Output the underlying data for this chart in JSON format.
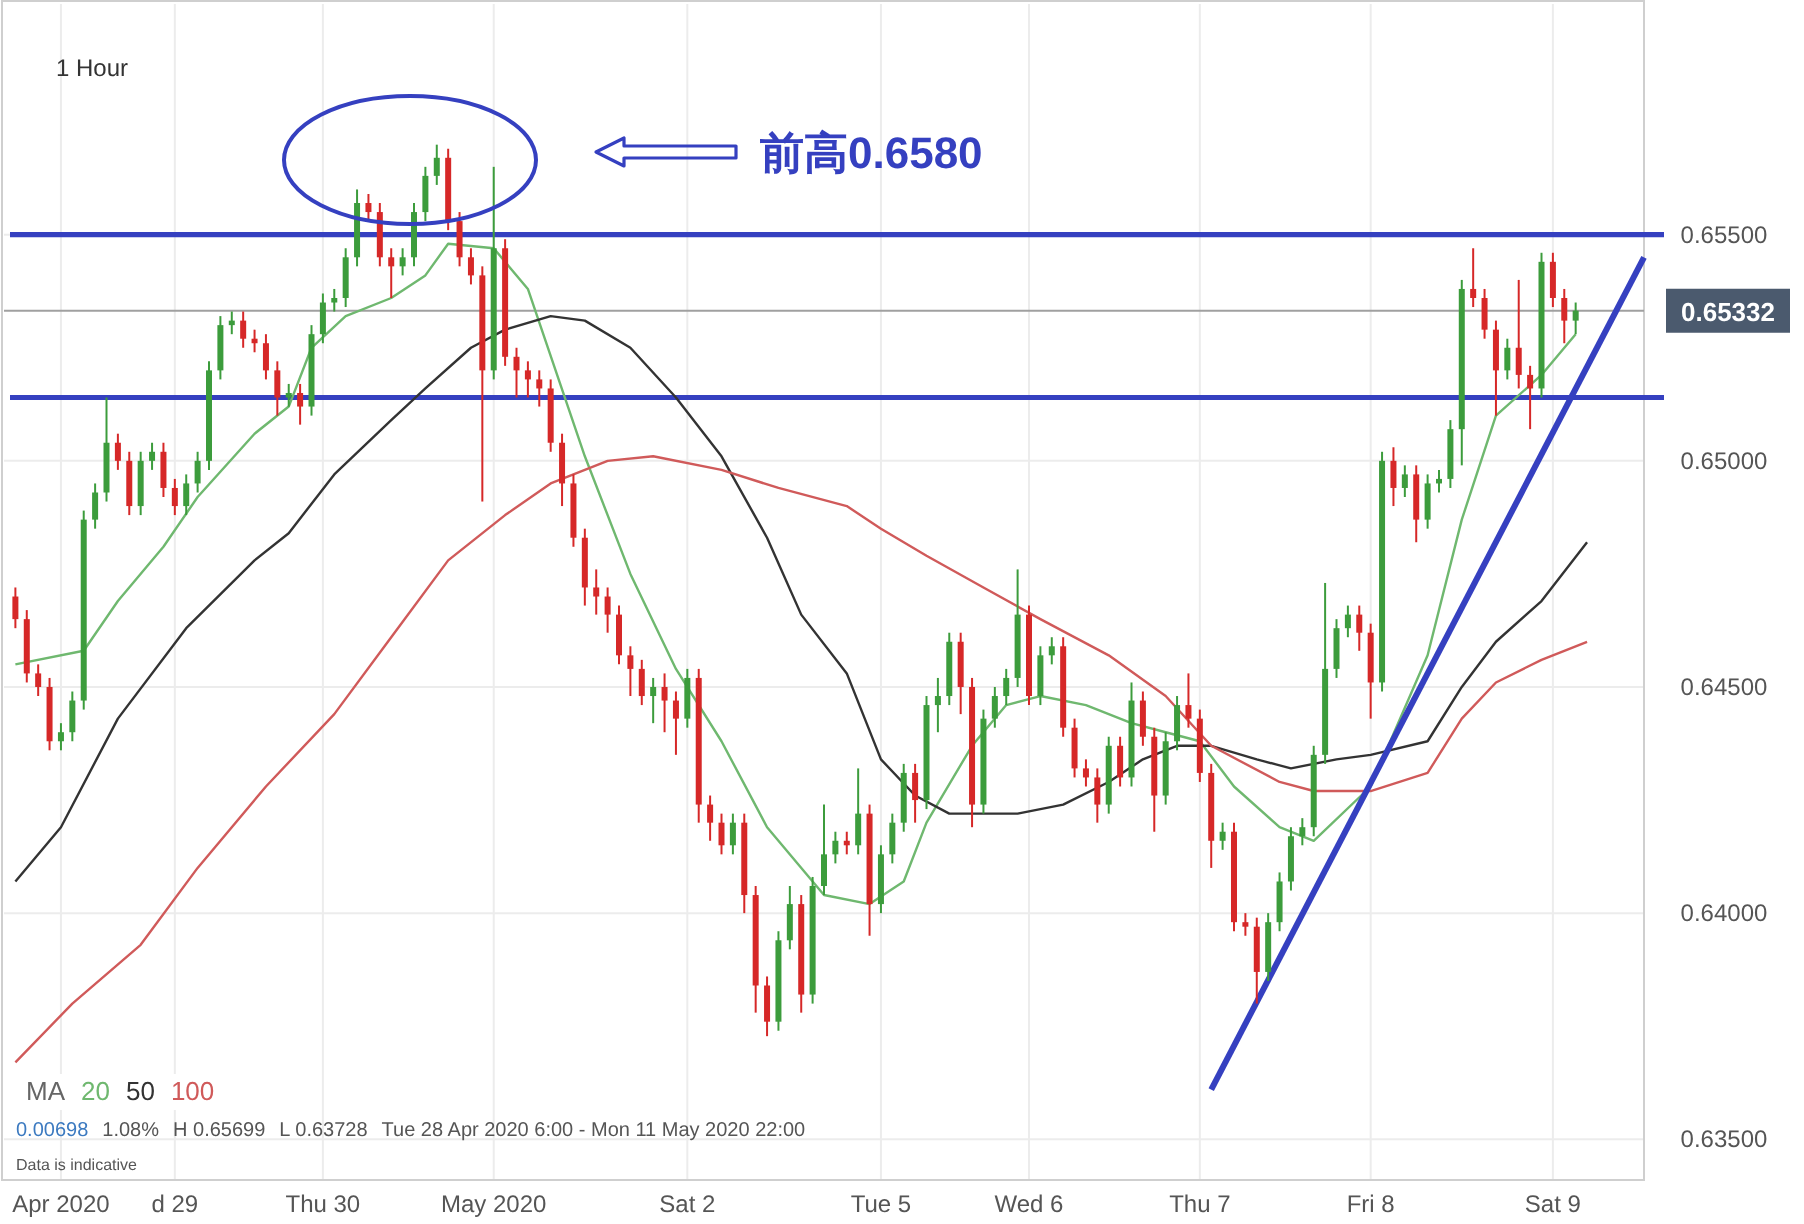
{
  "chart_data": {
    "type": "candlestick",
    "title": "1 Hour",
    "legend_title": "MA",
    "legend": "bottom left",
    "grid": true,
    "marker": "none",
    "line_style": "solid",
    "ylim": [
      0.6341,
      0.6601
    ],
    "yticks": [
      {
        "value": 0.635,
        "label": "0.63500"
      },
      {
        "value": 0.64,
        "label": "0.64000"
      },
      {
        "value": 0.645,
        "label": "0.64500"
      },
      {
        "value": 0.65,
        "label": "0.65000"
      },
      {
        "value": 0.655,
        "label": "0.65500"
      }
    ],
    "categories": [
      null,
      null,
      null,
      null,
      "Apr 2020",
      null,
      null,
      null,
      null,
      null,
      null,
      null,
      null,
      null,
      "d 29",
      null,
      null,
      null,
      null,
      null,
      null,
      null,
      null,
      null,
      null,
      null,
      null,
      "Thu 30",
      null,
      null,
      null,
      null,
      null,
      null,
      null,
      null,
      null,
      null,
      null,
      null,
      null,
      null,
      "May 2020",
      null,
      null,
      null,
      null,
      null,
      null,
      null,
      null,
      null,
      null,
      null,
      null,
      null,
      null,
      null,
      null,
      "Sat 2",
      null,
      null,
      null,
      null,
      null,
      null,
      null,
      null,
      null,
      null,
      null,
      null,
      null,
      null,
      null,
      null,
      "Tue 5",
      null,
      null,
      null,
      null,
      null,
      null,
      null,
      null,
      null,
      null,
      null,
      null,
      "Wed 6",
      null,
      null,
      null,
      null,
      null,
      null,
      null,
      null,
      null,
      null,
      null,
      null,
      null,
      null,
      "Thu 7",
      null,
      null,
      null,
      null,
      null,
      null,
      null,
      null,
      null,
      null,
      null,
      null,
      null,
      null,
      "Fri 8",
      null,
      null,
      null,
      null,
      null,
      null,
      null,
      null,
      null,
      null,
      null,
      null,
      null,
      null,
      null,
      "Sat 9",
      null,
      null,
      null,
      null,
      null,
      null,
      null,
      null
    ],
    "ohlc": [
      [
        0.647,
        0.6472,
        0.6463,
        0.6465
      ],
      [
        0.6465,
        0.6467,
        0.6451,
        0.6453
      ],
      [
        0.6453,
        0.6455,
        0.6448,
        0.645
      ],
      [
        0.645,
        0.6452,
        0.6436,
        0.6438
      ],
      [
        0.6438,
        0.6442,
        0.6436,
        0.644
      ],
      [
        0.644,
        0.6449,
        0.6438,
        0.6447
      ],
      [
        0.6447,
        0.6489,
        0.6445,
        0.6487
      ],
      [
        0.6487,
        0.6495,
        0.6485,
        0.6493
      ],
      [
        0.6493,
        0.6514,
        0.6491,
        0.6504
      ],
      [
        0.6504,
        0.6506,
        0.6498,
        0.65
      ],
      [
        0.65,
        0.6502,
        0.6488,
        0.649
      ],
      [
        0.649,
        0.6502,
        0.6488,
        0.65
      ],
      [
        0.65,
        0.6504,
        0.6498,
        0.6502
      ],
      [
        0.6502,
        0.6504,
        0.6492,
        0.6494
      ],
      [
        0.6494,
        0.6496,
        0.6488,
        0.649
      ],
      [
        0.649,
        0.6497,
        0.6488,
        0.6495
      ],
      [
        0.6495,
        0.6502,
        0.6493,
        0.65
      ],
      [
        0.65,
        0.6522,
        0.6498,
        0.652
      ],
      [
        0.652,
        0.6532,
        0.6518,
        0.653
      ],
      [
        0.653,
        0.6533,
        0.6528,
        0.6531
      ],
      [
        0.6531,
        0.6533,
        0.6525,
        0.6527
      ],
      [
        0.6527,
        0.6529,
        0.6524,
        0.6526
      ],
      [
        0.6526,
        0.6528,
        0.6518,
        0.652
      ],
      [
        0.652,
        0.6522,
        0.651,
        0.6514
      ],
      [
        0.6514,
        0.6517,
        0.6512,
        0.6515
      ],
      [
        0.6515,
        0.6517,
        0.6508,
        0.6512
      ],
      [
        0.6512,
        0.653,
        0.651,
        0.6528
      ],
      [
        0.6528,
        0.6537,
        0.6526,
        0.6535
      ],
      [
        0.6535,
        0.6538,
        0.6533,
        0.6536
      ],
      [
        0.6536,
        0.6547,
        0.6534,
        0.6545
      ],
      [
        0.6545,
        0.656,
        0.6543,
        0.6557
      ],
      [
        0.6557,
        0.6559,
        0.6553,
        0.6555
      ],
      [
        0.6555,
        0.6557,
        0.6543,
        0.6545
      ],
      [
        0.6545,
        0.6547,
        0.6536,
        0.6543
      ],
      [
        0.6543,
        0.6547,
        0.6541,
        0.6545
      ],
      [
        0.6545,
        0.6557,
        0.6543,
        0.6555
      ],
      [
        0.6555,
        0.6565,
        0.6553,
        0.6563
      ],
      [
        0.6563,
        0.65699,
        0.6561,
        0.6567
      ],
      [
        0.6567,
        0.6569,
        0.6551,
        0.6553
      ],
      [
        0.6553,
        0.6555,
        0.6543,
        0.6545
      ],
      [
        0.6545,
        0.6547,
        0.6539,
        0.6541
      ],
      [
        0.6541,
        0.6543,
        0.6491,
        0.652
      ],
      [
        0.652,
        0.6565,
        0.6518,
        0.6547
      ],
      [
        0.6547,
        0.6549,
        0.6521,
        0.6523
      ],
      [
        0.6523,
        0.6525,
        0.6514,
        0.652
      ],
      [
        0.652,
        0.6522,
        0.6514,
        0.6518
      ],
      [
        0.6518,
        0.652,
        0.6512,
        0.6516
      ],
      [
        0.6516,
        0.6518,
        0.6502,
        0.6504
      ],
      [
        0.6504,
        0.6506,
        0.649,
        0.6495
      ],
      [
        0.6495,
        0.6497,
        0.6481,
        0.6483
      ],
      [
        0.6483,
        0.6485,
        0.6468,
        0.6472
      ],
      [
        0.6472,
        0.6476,
        0.6466,
        0.647
      ],
      [
        0.647,
        0.6472,
        0.6462,
        0.6466
      ],
      [
        0.6466,
        0.6468,
        0.6455,
        0.6457
      ],
      [
        0.6457,
        0.6459,
        0.6448,
        0.6454
      ],
      [
        0.6454,
        0.6456,
        0.6446,
        0.6448
      ],
      [
        0.6448,
        0.6452,
        0.6442,
        0.645
      ],
      [
        0.645,
        0.6453,
        0.644,
        0.6447
      ],
      [
        0.6447,
        0.6449,
        0.6435,
        0.6443
      ],
      [
        0.6443,
        0.6454,
        0.6441,
        0.6452
      ],
      [
        0.6452,
        0.6454,
        0.642,
        0.6424
      ],
      [
        0.6424,
        0.6426,
        0.6416,
        0.642
      ],
      [
        0.642,
        0.6422,
        0.6413,
        0.6415
      ],
      [
        0.6415,
        0.6422,
        0.6413,
        0.642
      ],
      [
        0.642,
        0.6422,
        0.64,
        0.6404
      ],
      [
        0.6404,
        0.6406,
        0.6378,
        0.6384
      ],
      [
        0.6384,
        0.6386,
        0.63728,
        0.6376
      ],
      [
        0.6376,
        0.6396,
        0.6374,
        0.6394
      ],
      [
        0.6394,
        0.6406,
        0.6392,
        0.6402
      ],
      [
        0.6402,
        0.6404,
        0.6378,
        0.6382
      ],
      [
        0.6382,
        0.6408,
        0.638,
        0.6406
      ],
      [
        0.6406,
        0.6424,
        0.6404,
        0.6413
      ],
      [
        0.6413,
        0.6418,
        0.6411,
        0.6416
      ],
      [
        0.6416,
        0.6418,
        0.6413,
        0.6415
      ],
      [
        0.6415,
        0.6432,
        0.6413,
        0.6422
      ],
      [
        0.6422,
        0.6424,
        0.6395,
        0.6402
      ],
      [
        0.6402,
        0.6415,
        0.64,
        0.6413
      ],
      [
        0.6413,
        0.6422,
        0.6411,
        0.642
      ],
      [
        0.642,
        0.6433,
        0.6418,
        0.6431
      ],
      [
        0.6431,
        0.6433,
        0.642,
        0.6425
      ],
      [
        0.6425,
        0.6448,
        0.6423,
        0.6446
      ],
      [
        0.6446,
        0.6452,
        0.644,
        0.6448
      ],
      [
        0.6448,
        0.6462,
        0.6446,
        0.646
      ],
      [
        0.646,
        0.6462,
        0.6444,
        0.645
      ],
      [
        0.645,
        0.6452,
        0.6419,
        0.6424
      ],
      [
        0.6424,
        0.6445,
        0.6422,
        0.6443
      ],
      [
        0.6443,
        0.645,
        0.6441,
        0.6448
      ],
      [
        0.6448,
        0.6454,
        0.6446,
        0.6452
      ],
      [
        0.6452,
        0.6476,
        0.645,
        0.6466
      ],
      [
        0.6466,
        0.6468,
        0.6446,
        0.6448
      ],
      [
        0.6448,
        0.6459,
        0.6446,
        0.6457
      ],
      [
        0.6457,
        0.6461,
        0.6455,
        0.6459
      ],
      [
        0.6459,
        0.6461,
        0.6439,
        0.6441
      ],
      [
        0.6441,
        0.6443,
        0.643,
        0.6432
      ],
      [
        0.6432,
        0.6434,
        0.6428,
        0.643
      ],
      [
        0.643,
        0.6432,
        0.642,
        0.6424
      ],
      [
        0.6424,
        0.6439,
        0.6422,
        0.6437
      ],
      [
        0.6437,
        0.6439,
        0.6428,
        0.643
      ],
      [
        0.643,
        0.6451,
        0.6428,
        0.6447
      ],
      [
        0.6447,
        0.6449,
        0.6437,
        0.6439
      ],
      [
        0.6439,
        0.6441,
        0.6418,
        0.6426
      ],
      [
        0.6426,
        0.644,
        0.6424,
        0.6438
      ],
      [
        0.6438,
        0.6448,
        0.6436,
        0.6446
      ],
      [
        0.6446,
        0.6453,
        0.6441,
        0.6443
      ],
      [
        0.6443,
        0.6445,
        0.6429,
        0.6431
      ],
      [
        0.6431,
        0.6433,
        0.641,
        0.6416
      ],
      [
        0.6416,
        0.642,
        0.6414,
        0.6418
      ],
      [
        0.6418,
        0.642,
        0.6396,
        0.6398
      ],
      [
        0.6398,
        0.64,
        0.6395,
        0.6397
      ],
      [
        0.6397,
        0.6399,
        0.638,
        0.6387
      ],
      [
        0.6387,
        0.64,
        0.6385,
        0.6398
      ],
      [
        0.6398,
        0.6409,
        0.6396,
        0.6407
      ],
      [
        0.6407,
        0.6419,
        0.6405,
        0.6417
      ],
      [
        0.6417,
        0.6421,
        0.6415,
        0.6419
      ],
      [
        0.6419,
        0.6437,
        0.6417,
        0.6435
      ],
      [
        0.6435,
        0.6473,
        0.6433,
        0.6454
      ],
      [
        0.6454,
        0.6465,
        0.6452,
        0.6463
      ],
      [
        0.6463,
        0.6468,
        0.6461,
        0.6466
      ],
      [
        0.6466,
        0.6468,
        0.6458,
        0.6462
      ],
      [
        0.6462,
        0.6464,
        0.6443,
        0.6451
      ],
      [
        0.6451,
        0.6502,
        0.6449,
        0.65
      ],
      [
        0.65,
        0.6503,
        0.649,
        0.6494
      ],
      [
        0.6494,
        0.6499,
        0.6492,
        0.6497
      ],
      [
        0.6497,
        0.6499,
        0.6482,
        0.6487
      ],
      [
        0.6487,
        0.6497,
        0.6485,
        0.6495
      ],
      [
        0.6495,
        0.6498,
        0.6493,
        0.6496
      ],
      [
        0.6496,
        0.6509,
        0.6494,
        0.6507
      ],
      [
        0.6507,
        0.654,
        0.6499,
        0.6538
      ],
      [
        0.6538,
        0.6547,
        0.6534,
        0.6536
      ],
      [
        0.6536,
        0.6538,
        0.6527,
        0.6529
      ],
      [
        0.6529,
        0.6531,
        0.651,
        0.652
      ],
      [
        0.652,
        0.6527,
        0.6518,
        0.6525
      ],
      [
        0.6525,
        0.654,
        0.6516,
        0.6519
      ],
      [
        0.6519,
        0.6521,
        0.6507,
        0.6516
      ],
      [
        0.6516,
        0.6546,
        0.6514,
        0.6544
      ],
      [
        0.6544,
        0.6546,
        0.6534,
        0.6536
      ],
      [
        0.6536,
        0.6538,
        0.6526,
        0.6531
      ],
      [
        0.6531,
        0.6535,
        0.6528,
        0.65332
      ],
      null,
      null,
      null,
      null,
      null,
      null
    ],
    "series": [
      {
        "name": "20",
        "type": "line",
        "color": "#6fb86f",
        "values": [
          0.6455,
          null,
          null,
          null,
          null,
          null,
          0.6458,
          null,
          null,
          0.6469,
          null,
          null,
          null,
          0.6481,
          null,
          null,
          0.6492,
          null,
          null,
          null,
          null,
          0.6506,
          null,
          null,
          0.6512,
          null,
          0.6525,
          null,
          null,
          0.6532,
          null,
          null,
          null,
          0.6536,
          null,
          null,
          0.6541,
          null,
          0.6548,
          null,
          null,
          null,
          0.6547,
          null,
          null,
          0.6538,
          null,
          null,
          null,
          null,
          0.6501,
          null,
          null,
          null,
          0.6475,
          null,
          null,
          null,
          0.6454,
          null,
          null,
          null,
          0.6438,
          null,
          null,
          null,
          0.6419,
          null,
          null,
          null,
          null,
          0.6404,
          null,
          null,
          null,
          0.6402,
          null,
          null,
          0.6407,
          null,
          0.642,
          null,
          null,
          null,
          0.6437,
          null,
          null,
          0.6446,
          null,
          null,
          0.6448,
          null,
          null,
          null,
          0.6446,
          null,
          null,
          null,
          0.6442,
          null,
          null,
          0.644,
          null,
          null,
          0.6438,
          null,
          null,
          0.6428,
          null,
          null,
          null,
          0.6419,
          null,
          null,
          0.6416,
          null,
          null,
          null,
          null,
          0.6428,
          null,
          null,
          null,
          null,
          0.6457,
          null,
          null,
          0.6487,
          null,
          null,
          0.651,
          null,
          null,
          null,
          0.6519,
          null,
          null,
          0.6528,
          null,
          null,
          null,
          null,
          null,
          null
        ]
      },
      {
        "name": "50",
        "type": "line",
        "color": "#333333",
        "values": [
          0.6407,
          null,
          null,
          null,
          0.6419,
          null,
          null,
          null,
          null,
          0.6443,
          null,
          null,
          null,
          null,
          null,
          0.6463,
          null,
          null,
          null,
          null,
          null,
          0.6478,
          null,
          null,
          0.6484,
          null,
          null,
          null,
          0.6497,
          null,
          null,
          null,
          null,
          0.6509,
          null,
          null,
          0.6516,
          null,
          null,
          null,
          0.6525,
          null,
          null,
          0.6529,
          null,
          null,
          null,
          0.6532,
          null,
          null,
          0.6531,
          null,
          null,
          null,
          0.6525,
          null,
          null,
          null,
          0.6514,
          null,
          null,
          null,
          0.6501,
          null,
          null,
          null,
          0.6483,
          null,
          null,
          0.6466,
          null,
          null,
          null,
          0.6453,
          null,
          null,
          0.6434,
          null,
          null,
          0.6426,
          null,
          null,
          0.6422,
          null,
          null,
          0.6422,
          null,
          null,
          0.6422,
          null,
          null,
          null,
          0.6424,
          null,
          null,
          null,
          0.6429,
          null,
          null,
          0.6434,
          null,
          null,
          0.6437,
          null,
          null,
          0.6437,
          null,
          null,
          null,
          0.6434,
          null,
          null,
          0.6432,
          null,
          null,
          null,
          0.6434,
          null,
          null,
          0.6435,
          null,
          null,
          null,
          null,
          0.6438,
          null,
          null,
          0.645,
          null,
          null,
          0.646,
          null,
          null,
          null,
          0.6469,
          null,
          null,
          null,
          0.6482,
          null,
          null,
          null,
          null,
          null
        ]
      },
      {
        "name": "100",
        "type": "line",
        "color": "#d05a5a",
        "values": [
          0.6367,
          null,
          null,
          null,
          null,
          0.638,
          null,
          null,
          null,
          null,
          null,
          0.6393,
          null,
          null,
          null,
          null,
          0.641,
          null,
          null,
          null,
          null,
          null,
          0.6428,
          null,
          null,
          null,
          null,
          null,
          0.6444,
          null,
          null,
          null,
          null,
          0.6461,
          null,
          null,
          null,
          null,
          0.6478,
          null,
          null,
          null,
          null,
          0.6488,
          null,
          null,
          null,
          0.6495,
          null,
          null,
          null,
          null,
          0.65,
          null,
          null,
          null,
          0.6501,
          null,
          null,
          null,
          null,
          null,
          0.6498,
          null,
          null,
          null,
          null,
          0.6494,
          null,
          null,
          null,
          null,
          null,
          0.649,
          null,
          null,
          0.6485,
          null,
          null,
          null,
          0.6479,
          null,
          null,
          null,
          null,
          0.6472,
          null,
          null,
          null,
          null,
          0.6465,
          null,
          null,
          null,
          null,
          null,
          0.6457,
          null,
          null,
          null,
          null,
          0.6448,
          null,
          null,
          null,
          0.6437,
          null,
          null,
          null,
          null,
          null,
          0.6429,
          null,
          null,
          0.6427,
          null,
          null,
          null,
          null,
          0.6427,
          null,
          null,
          null,
          null,
          0.6431,
          null,
          null,
          0.6443,
          null,
          null,
          0.6451,
          null,
          null,
          null,
          0.6456,
          null,
          null,
          null,
          0.646,
          null,
          null,
          null,
          null,
          null
        ]
      },
      {
        "type": "line",
        "color": "#3540c0",
        "values": [
          null,
          null,
          null,
          null,
          null,
          null,
          null,
          null,
          null,
          null,
          null,
          null,
          null,
          null,
          null,
          null,
          null,
          null,
          null,
          null,
          null,
          null,
          null,
          null,
          null,
          null,
          null,
          null,
          null,
          null,
          null,
          null,
          null,
          null,
          null,
          null,
          null,
          null,
          null,
          null,
          null,
          null,
          null,
          null,
          null,
          null,
          null,
          null,
          null,
          null,
          null,
          null,
          null,
          null,
          null,
          null,
          null,
          null,
          null,
          null,
          null,
          null,
          null,
          null,
          null,
          null,
          null,
          null,
          null,
          null,
          null,
          null,
          null,
          null,
          null,
          null,
          null,
          null,
          null,
          null,
          null,
          null,
          null,
          null,
          null,
          null,
          null,
          null,
          null,
          null,
          null,
          null,
          null,
          null,
          null,
          null,
          null,
          null,
          null,
          null,
          null,
          null,
          null,
          null,
          null,
          0.6361,
          null,
          null,
          null,
          null,
          null,
          null,
          null,
          null,
          null,
          null,
          null,
          null,
          null,
          null,
          null,
          null,
          null,
          null,
          null,
          null,
          null,
          null,
          null,
          null,
          null,
          null,
          null,
          null,
          null,
          null,
          null,
          null,
          null,
          null,
          null,
          null,
          null,
          0.6545
        ]
      }
    ],
    "ref_lines": [
      {
        "axis": "y",
        "value": 0.655,
        "color": "#3540c0"
      },
      {
        "axis": "y",
        "value": 0.6514,
        "color": "#3540c0"
      },
      {
        "axis": "y",
        "value": 0.65332,
        "color": "#a0a0a0",
        "line_style": "solid"
      }
    ],
    "annotations": [
      "前高0.6580",
      "0.00698",
      "1.08%",
      "H 0.65699",
      "L 0.63728",
      "Tue 28 Apr 2020 6:00 - Mon 11 May 2020 22:00",
      "Data is indicative",
      "0.65332"
    ]
  }
}
